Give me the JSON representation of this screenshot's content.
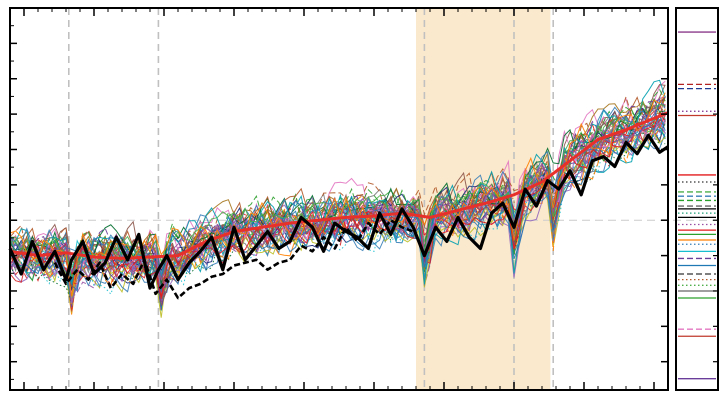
{
  "chart_data": {
    "type": "line",
    "title": "",
    "xlabel": "",
    "ylabel": "",
    "x_range": [
      1860,
      2095
    ],
    "ylim": [
      -1.2,
      1.5
    ],
    "reference_y": 0.0,
    "grid": false,
    "highlight_band": {
      "x_start": 2005,
      "x_end": 2053,
      "color": "#fbe9cd"
    },
    "event_years": [
      1881,
      1913,
      2008,
      2040,
      2054
    ],
    "colors": {
      "ensemble_mean": "#e8302a",
      "observations": "#000000",
      "highlight": "#fbe9cd",
      "event_line": "#c0c0c0",
      "reference_line": "#cccccc"
    },
    "ensemble": {
      "count": 45,
      "palette": [
        "#e41a1c",
        "#377eb8",
        "#4daf4a",
        "#984ea3",
        "#ff7f00",
        "#a6761d",
        "#1b2a7a",
        "#17becf",
        "#bcbd22",
        "#7f7f7f",
        "#d62728",
        "#2ca02c",
        "#9467bd",
        "#8c564b",
        "#e377c2",
        "#1f77b4",
        "#006d2c",
        "#b15928",
        "#6a3d9a",
        "#00a0b0"
      ],
      "mean_x": [
        1860,
        1870,
        1880,
        1890,
        1900,
        1910,
        1920,
        1930,
        1940,
        1950,
        1960,
        1970,
        1980,
        1990,
        2000,
        2010,
        2020,
        2030,
        2040,
        2050,
        2060,
        2070,
        2080,
        2090,
        2095
      ],
      "mean_y": [
        -0.22,
        -0.25,
        -0.23,
        -0.26,
        -0.27,
        -0.26,
        -0.25,
        -0.15,
        -0.08,
        -0.05,
        -0.02,
        0.0,
        0.02,
        0.03,
        0.05,
        0.02,
        0.07,
        0.12,
        0.18,
        0.27,
        0.42,
        0.57,
        0.64,
        0.72,
        0.76
      ]
    },
    "series": [
      {
        "style": "solid",
        "x": [
          1860,
          1864,
          1868,
          1872,
          1876,
          1880,
          1882,
          1886,
          1890,
          1894,
          1898,
          1902,
          1906,
          1910,
          1913,
          1916,
          1920,
          1924,
          1928,
          1932,
          1936,
          1940,
          1944,
          1948,
          1952,
          1956,
          1960,
          1964,
          1968,
          1972,
          1976,
          1980,
          1984,
          1988,
          1992,
          1996,
          2000,
          2004,
          2008,
          2012,
          2016,
          2020,
          2024,
          2028,
          2032,
          2036,
          2040,
          2044,
          2048,
          2052,
          2056,
          2060,
          2064,
          2068,
          2072,
          2076,
          2080,
          2084,
          2088,
          2092,
          2095
        ],
        "y": [
          -0.2,
          -0.38,
          -0.15,
          -0.35,
          -0.22,
          -0.42,
          -0.28,
          -0.15,
          -0.38,
          -0.3,
          -0.12,
          -0.28,
          -0.1,
          -0.48,
          -0.35,
          -0.25,
          -0.42,
          -0.3,
          -0.22,
          -0.12,
          -0.35,
          -0.05,
          -0.28,
          -0.18,
          -0.08,
          -0.2,
          -0.15,
          0.02,
          -0.05,
          -0.22,
          -0.02,
          -0.08,
          -0.12,
          -0.2,
          0.05,
          -0.1,
          0.08,
          -0.05,
          -0.25,
          -0.05,
          -0.15,
          0.02,
          -0.12,
          -0.2,
          0.05,
          0.12,
          -0.05,
          0.22,
          0.1,
          0.28,
          0.22,
          0.35,
          0.18,
          0.42,
          0.45,
          0.38,
          0.55,
          0.47,
          0.6,
          0.48,
          0.52
        ]
      },
      {
        "style": "dashed",
        "x": [
          1876,
          1880,
          1884,
          1888,
          1892,
          1896,
          1900,
          1904,
          1908,
          1912,
          1916,
          1920,
          1924,
          1928,
          1932,
          1936,
          1940,
          1944,
          1948,
          1952,
          1956,
          1960,
          1964,
          1968,
          1972,
          1976,
          1980,
          1984,
          1988,
          1992,
          1996,
          2000,
          2004
        ],
        "y": [
          -0.3,
          -0.45,
          -0.35,
          -0.42,
          -0.3,
          -0.48,
          -0.38,
          -0.45,
          -0.28,
          -0.52,
          -0.42,
          -0.55,
          -0.48,
          -0.45,
          -0.4,
          -0.38,
          -0.32,
          -0.3,
          -0.28,
          -0.35,
          -0.3,
          -0.28,
          -0.18,
          -0.22,
          -0.12,
          -0.2,
          -0.05,
          -0.15,
          -0.02,
          -0.1,
          0.0,
          -0.05,
          -0.08
        ]
      }
    ],
    "marginal_ticks": [
      {
        "y": 1.33,
        "color": "#8b3a8b",
        "style": "solid"
      },
      {
        "y": 0.96,
        "color": "#b22222",
        "style": "dashed"
      },
      {
        "y": 0.93,
        "color": "#1f3a93",
        "style": "dashed"
      },
      {
        "y": 0.77,
        "color": "#7b2d8e",
        "style": "dotted"
      },
      {
        "y": 0.74,
        "color": "#c0392b",
        "style": "solid"
      },
      {
        "y": 0.32,
        "color": "#e41a1c",
        "style": "solid"
      },
      {
        "y": 0.27,
        "color": "#333333",
        "style": "dotted"
      },
      {
        "y": 0.2,
        "color": "#4daf4a",
        "style": "dashed"
      },
      {
        "y": 0.17,
        "color": "#377eb8",
        "style": "dashed"
      },
      {
        "y": 0.14,
        "color": "#2ca02c",
        "style": "dashed"
      },
      {
        "y": 0.1,
        "color": "#666666",
        "style": "dashed"
      },
      {
        "y": 0.08,
        "color": "#000000",
        "style": "solid"
      },
      {
        "y": 0.05,
        "color": "#1b9e77",
        "style": "dotted"
      },
      {
        "y": 0.02,
        "color": "#000000",
        "style": "solid"
      },
      {
        "y": -0.03,
        "color": "#984ea3",
        "style": "dotted"
      },
      {
        "y": -0.07,
        "color": "#e41a1c",
        "style": "solid"
      },
      {
        "y": -0.1,
        "color": "#2ca02c",
        "style": "solid"
      },
      {
        "y": -0.14,
        "color": "#ff7f00",
        "style": "solid"
      },
      {
        "y": -0.17,
        "color": "#377eb8",
        "style": "dotted"
      },
      {
        "y": -0.22,
        "color": "#17becf",
        "style": "solid"
      },
      {
        "y": -0.27,
        "color": "#6a3d9a",
        "style": "dashed"
      },
      {
        "y": -0.32,
        "color": "#1f77b4",
        "style": "solid"
      },
      {
        "y": -0.38,
        "color": "#333333",
        "style": "dashed"
      },
      {
        "y": -0.42,
        "color": "#b15928",
        "style": "dotted"
      },
      {
        "y": -0.46,
        "color": "#4daf4a",
        "style": "dotted"
      },
      {
        "y": -0.5,
        "color": "#666666",
        "style": "solid"
      },
      {
        "y": -0.55,
        "color": "#2ca02c",
        "style": "solid"
      },
      {
        "y": -0.77,
        "color": "#e377c2",
        "style": "dashed"
      },
      {
        "y": -0.82,
        "color": "#c0392b",
        "style": "solid"
      },
      {
        "y": -1.12,
        "color": "#6a3d9a",
        "style": "solid"
      }
    ]
  }
}
